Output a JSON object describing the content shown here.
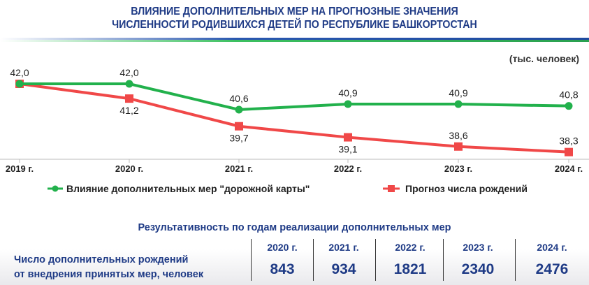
{
  "title": [
    "ВЛИЯНИЕ ДОПОЛНИТЕЛЬНЫХ МЕР НА ПРОГНОЗНЫЕ ЗНАЧЕНИЯ",
    "ЧИСЛЕННОСТИ РОДИВШИХСЯ ДЕТЕЙ ПО РЕСПУБЛИКЕ БАШКОРТОСТАН"
  ],
  "unit": "(тыс. человек)",
  "chart_data": {
    "type": "line",
    "categories": [
      "2019 г.",
      "2020 г.",
      "2021 г.",
      "2022 г.",
      "2023 г.",
      "2024 г."
    ],
    "series": [
      {
        "name": "Влияние дополнительных мер \"дорожной карты\"",
        "color": "#22b14c",
        "values": [
          42.0,
          42.0,
          40.6,
          40.9,
          40.9,
          40.8
        ],
        "labels": [
          "42,0",
          "42,0",
          "40,6",
          "40,9",
          "40,9",
          "40,8"
        ]
      },
      {
        "name": "Прогноз числа рождений",
        "color": "#f04848",
        "values": [
          42.0,
          41.2,
          39.7,
          39.1,
          38.6,
          38.3
        ],
        "labels": [
          "42,0",
          "41,2",
          "39,7",
          "39,1",
          "38,6",
          "38,3"
        ]
      }
    ],
    "ylim": [
      38.0,
      42.5
    ],
    "grid": false,
    "legend": "bottom"
  },
  "table": {
    "title": "Результативность по годам реализации дополнительных мер",
    "row_label": [
      "Число дополнительных рождений",
      "от внедрения принятых мер, человек"
    ],
    "years": [
      "2020 г.",
      "2021 г.",
      "2022 г.",
      "2023 г.",
      "2024 г."
    ],
    "values": [
      "843",
      "934",
      "1821",
      "2340",
      "2476"
    ]
  }
}
